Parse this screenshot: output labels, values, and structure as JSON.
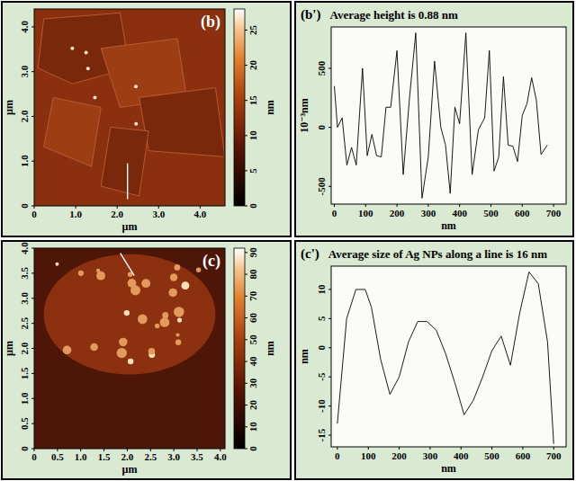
{
  "chart_data": [
    {
      "type": "image",
      "title": "(b)",
      "x_label": "µm",
      "y_label": "µm",
      "xlim": [
        0,
        4.6
      ],
      "ylim": [
        0,
        4.4
      ],
      "xticks": [
        0,
        {
          "value": 1,
          "label": "1.0"
        },
        {
          "value": 2,
          "label": "2.0"
        },
        {
          "value": 3,
          "label": "3.0"
        },
        {
          "value": 4,
          "label": "4.0"
        }
      ],
      "yticks": [
        0,
        {
          "value": 1,
          "label": "1.0"
        },
        {
          "value": 2,
          "label": "2.0"
        },
        {
          "value": 3,
          "label": "3.0"
        },
        {
          "value": 4,
          "label": "4.0"
        }
      ],
      "colorbar": {
        "range": [
          0,
          28
        ],
        "ticks": [
          0,
          5,
          10,
          15,
          20,
          25
        ],
        "label": "nm"
      },
      "profile_line": {
        "x": [
          2.25,
          2.25
        ],
        "y": [
          0.15,
          0.95
        ]
      }
    },
    {
      "type": "line",
      "panel": "(b')",
      "title": "Average height is 0.88 nm",
      "x_label": "nm",
      "y_label": "10⁻³nm",
      "x": [
        0,
        10,
        25,
        40,
        55,
        70,
        90,
        105,
        120,
        135,
        150,
        165,
        180,
        200,
        220,
        240,
        260,
        280,
        300,
        320,
        340,
        355,
        370,
        385,
        400,
        420,
        440,
        460,
        480,
        495,
        510,
        525,
        540,
        555,
        570,
        585,
        600,
        615,
        630,
        645,
        660,
        680
      ],
      "values": [
        350,
        0,
        80,
        -320,
        -170,
        -320,
        500,
        -240,
        -60,
        -240,
        -250,
        170,
        170,
        650,
        -400,
        250,
        800,
        -600,
        -250,
        560,
        0,
        -150,
        -560,
        170,
        30,
        800,
        -400,
        -20,
        80,
        650,
        -370,
        -250,
        430,
        -150,
        -160,
        -290,
        100,
        200,
        420,
        230,
        -230,
        -150
      ],
      "color": "#000000",
      "grid": false,
      "xlim": [
        -10,
        740
      ],
      "ylim": [
        -650,
        850
      ],
      "xticks": [
        0,
        100,
        200,
        300,
        400,
        500,
        600,
        700
      ],
      "yticks": [
        -500,
        0,
        500
      ]
    },
    {
      "type": "image",
      "title": "(c)",
      "x_label": "µm",
      "y_label": "µm",
      "xlim": [
        0,
        4.1
      ],
      "ylim": [
        0,
        4.0
      ],
      "xticks": [
        0,
        0.5,
        {
          "value": 1,
          "label": "1.0"
        },
        1.5,
        {
          "value": 2,
          "label": "2.0"
        },
        2.5,
        {
          "value": 3,
          "label": "3.0"
        },
        3.5,
        {
          "value": 4,
          "label": "4.0"
        }
      ],
      "yticks": [
        0,
        0.5,
        {
          "value": 1,
          "label": "1.0"
        },
        1.5,
        {
          "value": 2,
          "label": "2.0"
        },
        2.5,
        {
          "value": 3,
          "label": "3.0"
        },
        3.5,
        {
          "value": 4,
          "label": "4.0"
        }
      ],
      "colorbar": {
        "range": [
          0,
          92
        ],
        "ticks": [
          0,
          10,
          20,
          30,
          40,
          50,
          60,
          70,
          80,
          90
        ],
        "label": "nm"
      },
      "profile_line": {
        "x": [
          1.85,
          2.15
        ],
        "y": [
          3.9,
          3.45
        ]
      }
    },
    {
      "type": "line",
      "panel": "(c')",
      "title": "Average size of Ag NPs along a line is 16 nm",
      "x_label": "nm",
      "y_label": "nm",
      "x": [
        0,
        30,
        60,
        90,
        110,
        140,
        170,
        200,
        230,
        260,
        290,
        320,
        350,
        380,
        410,
        440,
        470,
        500,
        530,
        560,
        590,
        620,
        650,
        680,
        700
      ],
      "values": [
        -13,
        5,
        10,
        10,
        7,
        -2,
        -8,
        -5,
        1,
        4.5,
        4.5,
        3,
        -1,
        -6,
        -11.5,
        -9,
        -5,
        -0.5,
        2,
        -3,
        6,
        13,
        11,
        1,
        -16.5
      ],
      "color": "#000000",
      "grid": false,
      "xlim": [
        -20,
        740
      ],
      "ylim": [
        -17,
        14
      ],
      "xticks": [
        0,
        100,
        200,
        300,
        400,
        500,
        600,
        700
      ],
      "yticks": [
        -15,
        -10,
        -5,
        0,
        5,
        10
      ]
    }
  ]
}
